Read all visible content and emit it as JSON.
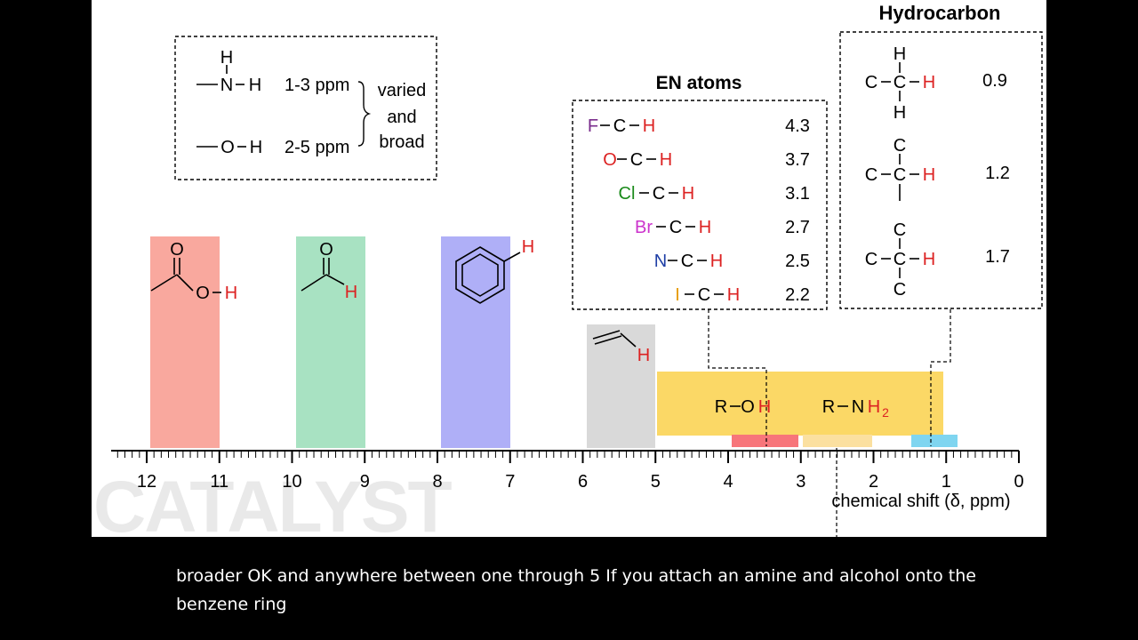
{
  "watermark": "CATALYST",
  "caption": {
    "line1": "broader OK and anywhere between one through 5 If you attach an amine and alcohol onto the",
    "line2": "benzene ring"
  },
  "colors": {
    "carboxylic": "#f9a89e",
    "aldehyde": "#a8e2c2",
    "aromatic": "#afaff7",
    "vinyl": "#d9d9d9",
    "alcohol_amine": "#fbd866",
    "red": "#dc2222",
    "violet": "#7a2d8c",
    "green": "#1a8a1a",
    "magenta": "#cc33cc",
    "blue": "#1f3fa6",
    "orange": "#e69a00"
  },
  "hetero_box": {
    "nh_label": "1-3 ppm",
    "oh_label": "2-5 ppm",
    "note": [
      "varied",
      "and",
      "broad"
    ],
    "h": "H",
    "n": "N",
    "o": "O"
  },
  "en_atoms": {
    "title": "EN atoms",
    "rows": [
      {
        "atom": "F",
        "color": "violet",
        "value": "4.3"
      },
      {
        "atom": "O",
        "color": "red",
        "value": "3.7"
      },
      {
        "atom": "Cl",
        "color": "green",
        "value": "3.1"
      },
      {
        "atom": "Br",
        "color": "magenta",
        "value": "2.7"
      },
      {
        "atom": "N",
        "color": "blue",
        "value": "2.5"
      },
      {
        "atom": "I",
        "color": "orange",
        "value": "2.2"
      }
    ],
    "c": "C",
    "h": "H"
  },
  "hydrocarbon": {
    "title": "Hydrocarbon",
    "values": [
      "0.9",
      "1.2",
      "1.7"
    ],
    "c": "C",
    "h": "H"
  },
  "regions": {
    "rnh2": {
      "r": "R",
      "n": "N",
      "h": "H",
      "sub": "2"
    },
    "roh": {
      "r": "R",
      "o": "O",
      "h": "H"
    },
    "carboxylic": {
      "o": "O",
      "h": "H"
    },
    "aldehyde": {
      "o": "O",
      "h": "H"
    },
    "aromatic": {
      "h": "H"
    },
    "vinyl": {
      "h": "H"
    }
  },
  "axis": {
    "label": "chemical shift (δ, ppm)",
    "ticks": [
      {
        "value": 12,
        "label": "12"
      },
      {
        "value": 11,
        "label": "11"
      },
      {
        "value": 10,
        "label": "10"
      },
      {
        "value": 9,
        "label": "9"
      },
      {
        "value": 8,
        "label": "8"
      },
      {
        "value": 7,
        "label": "7"
      },
      {
        "value": 6,
        "label": "6"
      },
      {
        "value": 5,
        "label": "5"
      },
      {
        "value": 4,
        "label": "4"
      },
      {
        "value": 3,
        "label": "3"
      },
      {
        "value": 2,
        "label": "2"
      },
      {
        "value": 1,
        "label": "1"
      },
      {
        "value": 0,
        "label": "0"
      }
    ],
    "range": [
      0,
      12.5
    ]
  }
}
